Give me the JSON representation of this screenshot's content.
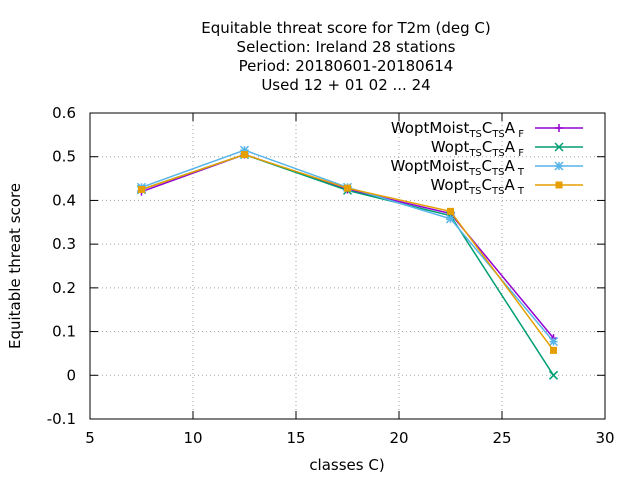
{
  "chart_data": {
    "type": "line",
    "title_lines": [
      "Equitable threat score  for T2m (deg C)",
      "Selection: Ireland     28 stations",
      "Period: 20180601-20180614",
      "Used  12 + 01 02 ... 24"
    ],
    "xlabel": "classes C)",
    "ylabel": "Equitable threat score",
    "xlim": [
      5,
      30
    ],
    "ylim": [
      -0.1,
      0.6
    ],
    "xticks": [
      5,
      10,
      15,
      20,
      25,
      30
    ],
    "yticks": [
      -0.1,
      0,
      0.1,
      0.2,
      0.3,
      0.4,
      0.5,
      0.6
    ],
    "grid": true,
    "legend_position": "top-right",
    "x": [
      7.5,
      12.5,
      17.5,
      22.5,
      27.5
    ],
    "series": [
      {
        "name": "WoptMoist TS CTS A F",
        "legend": {
          "base": "WoptMoist",
          "parts": [
            [
              "TS",
              "sub"
            ],
            [
              "C",
              "n"
            ],
            [
              "TS",
              "sub"
            ],
            [
              "A",
              "n"
            ],
            [
              " F",
              "sub"
            ]
          ]
        },
        "color": "#9400d3",
        "marker": "plus",
        "values": [
          0.42,
          0.505,
          0.425,
          0.37,
          0.085
        ]
      },
      {
        "name": "Wopt TS CTS A F",
        "legend": {
          "base": "Wopt",
          "parts": [
            [
              "TS",
              "sub"
            ],
            [
              "C",
              "n"
            ],
            [
              "TS",
              "sub"
            ],
            [
              "A",
              "n"
            ],
            [
              " F",
              "sub"
            ]
          ]
        },
        "color": "#009e73",
        "marker": "x",
        "values": [
          0.425,
          0.505,
          0.423,
          0.365,
          0.0
        ]
      },
      {
        "name": "WoptMoist TS CTS A T",
        "legend": {
          "base": "WoptMoist",
          "parts": [
            [
              "TS",
              "sub"
            ],
            [
              "C",
              "n"
            ],
            [
              "TS",
              "sub"
            ],
            [
              "A",
              "n"
            ],
            [
              " T",
              "sub"
            ]
          ]
        },
        "color": "#56b4e9",
        "marker": "star",
        "values": [
          0.43,
          0.515,
          0.43,
          0.358,
          0.077
        ]
      },
      {
        "name": "Wopt TS CTS A T",
        "legend": {
          "base": "Wopt",
          "parts": [
            [
              "TS",
              "sub"
            ],
            [
              "C",
              "n"
            ],
            [
              "TS",
              "sub"
            ],
            [
              "A",
              "n"
            ],
            [
              " T",
              "sub"
            ]
          ]
        },
        "color": "#e69f00",
        "marker": "square",
        "values": [
          0.425,
          0.505,
          0.428,
          0.375,
          0.057
        ]
      }
    ]
  }
}
